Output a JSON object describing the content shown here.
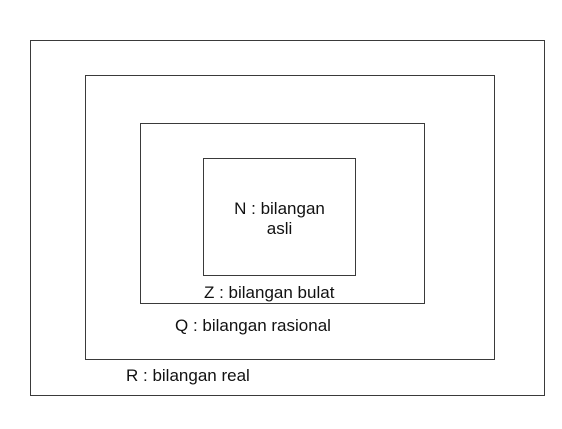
{
  "sets": {
    "real": {
      "label": "R : bilangan real"
    },
    "rational": {
      "label": "Q : bilangan rasional"
    },
    "integer": {
      "label": "Z : bilangan bulat"
    },
    "natural": {
      "label_line1": "N : bilangan",
      "label_line2": "asli"
    }
  },
  "colors": {
    "border": "#3a3a3a",
    "text": "#111111",
    "background": "#ffffff"
  }
}
